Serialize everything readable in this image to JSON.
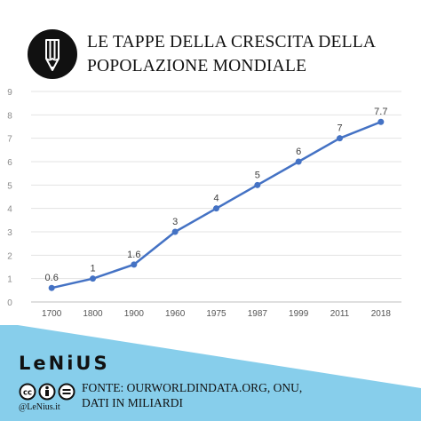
{
  "header": {
    "logo_icon": "pencil-icon",
    "title_line1": "LE TAPPE DELLA CRESCITA DELLA",
    "title_line2": "POPOLAZIONE MONDIALE"
  },
  "footer": {
    "brand": "LeNiUS",
    "license_icon": "creative-commons-by-nd-icon",
    "handle": "@LeNius.it",
    "source_line1": "FONTE: OURWORLDINDATA.ORG, ONU,",
    "source_line2": "DATI IN MILIARDI",
    "band_color": "#87ceeb"
  },
  "chart_data": {
    "type": "line",
    "categories": [
      "1700",
      "1800",
      "1900",
      "1960",
      "1975",
      "1987",
      "1999",
      "2011",
      "2018"
    ],
    "series": [
      {
        "values": [
          0.6,
          1,
          1.6,
          3,
          4,
          5,
          6,
          7,
          7.7
        ],
        "labels": [
          "0.6",
          "1",
          "1.6",
          "3",
          "4",
          "5",
          "6",
          "7",
          "7.7"
        ],
        "color": "#4472c4"
      }
    ],
    "ylim": [
      0,
      9
    ],
    "yticks": [
      "0",
      "1",
      "2",
      "3",
      "4",
      "5",
      "6",
      "7",
      "8",
      "9"
    ],
    "grid": true
  }
}
